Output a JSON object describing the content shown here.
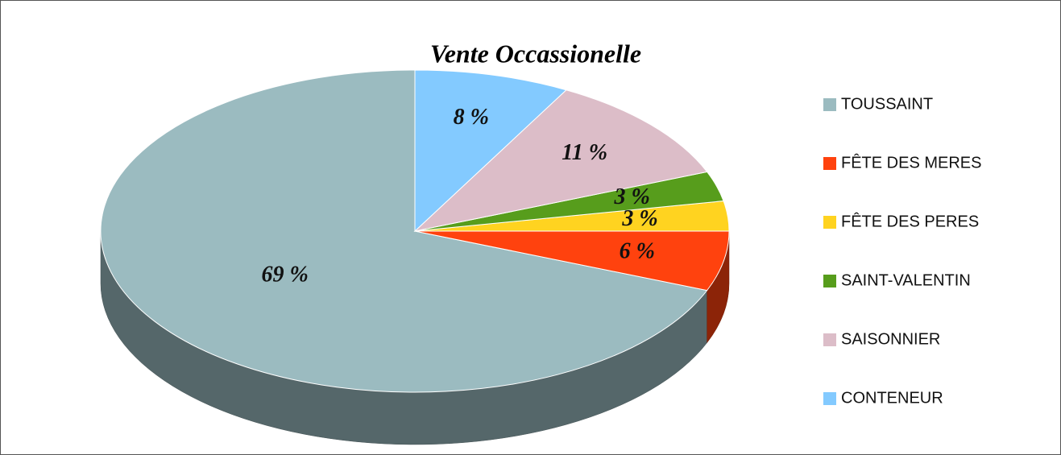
{
  "chart_data": {
    "type": "pie",
    "title": "Vente Occassionelle",
    "categories": [
      "TOUSSAINT",
      "FÊTE DES MERES",
      "FÊTE DES PERES",
      "SAINT-VALENTIN",
      "SAISONNIER",
      "CONTENEUR"
    ],
    "values": [
      69,
      6,
      3,
      3,
      11,
      8
    ],
    "value_labels": [
      "69 %",
      "6 %",
      "3 %",
      "3 %",
      "11 %",
      "8 %"
    ],
    "colors": [
      "#9bbbc0",
      "#ff420e",
      "#ffd320",
      "#579d1c",
      "#dcbdc8",
      "#83caff"
    ],
    "legend": "right"
  }
}
